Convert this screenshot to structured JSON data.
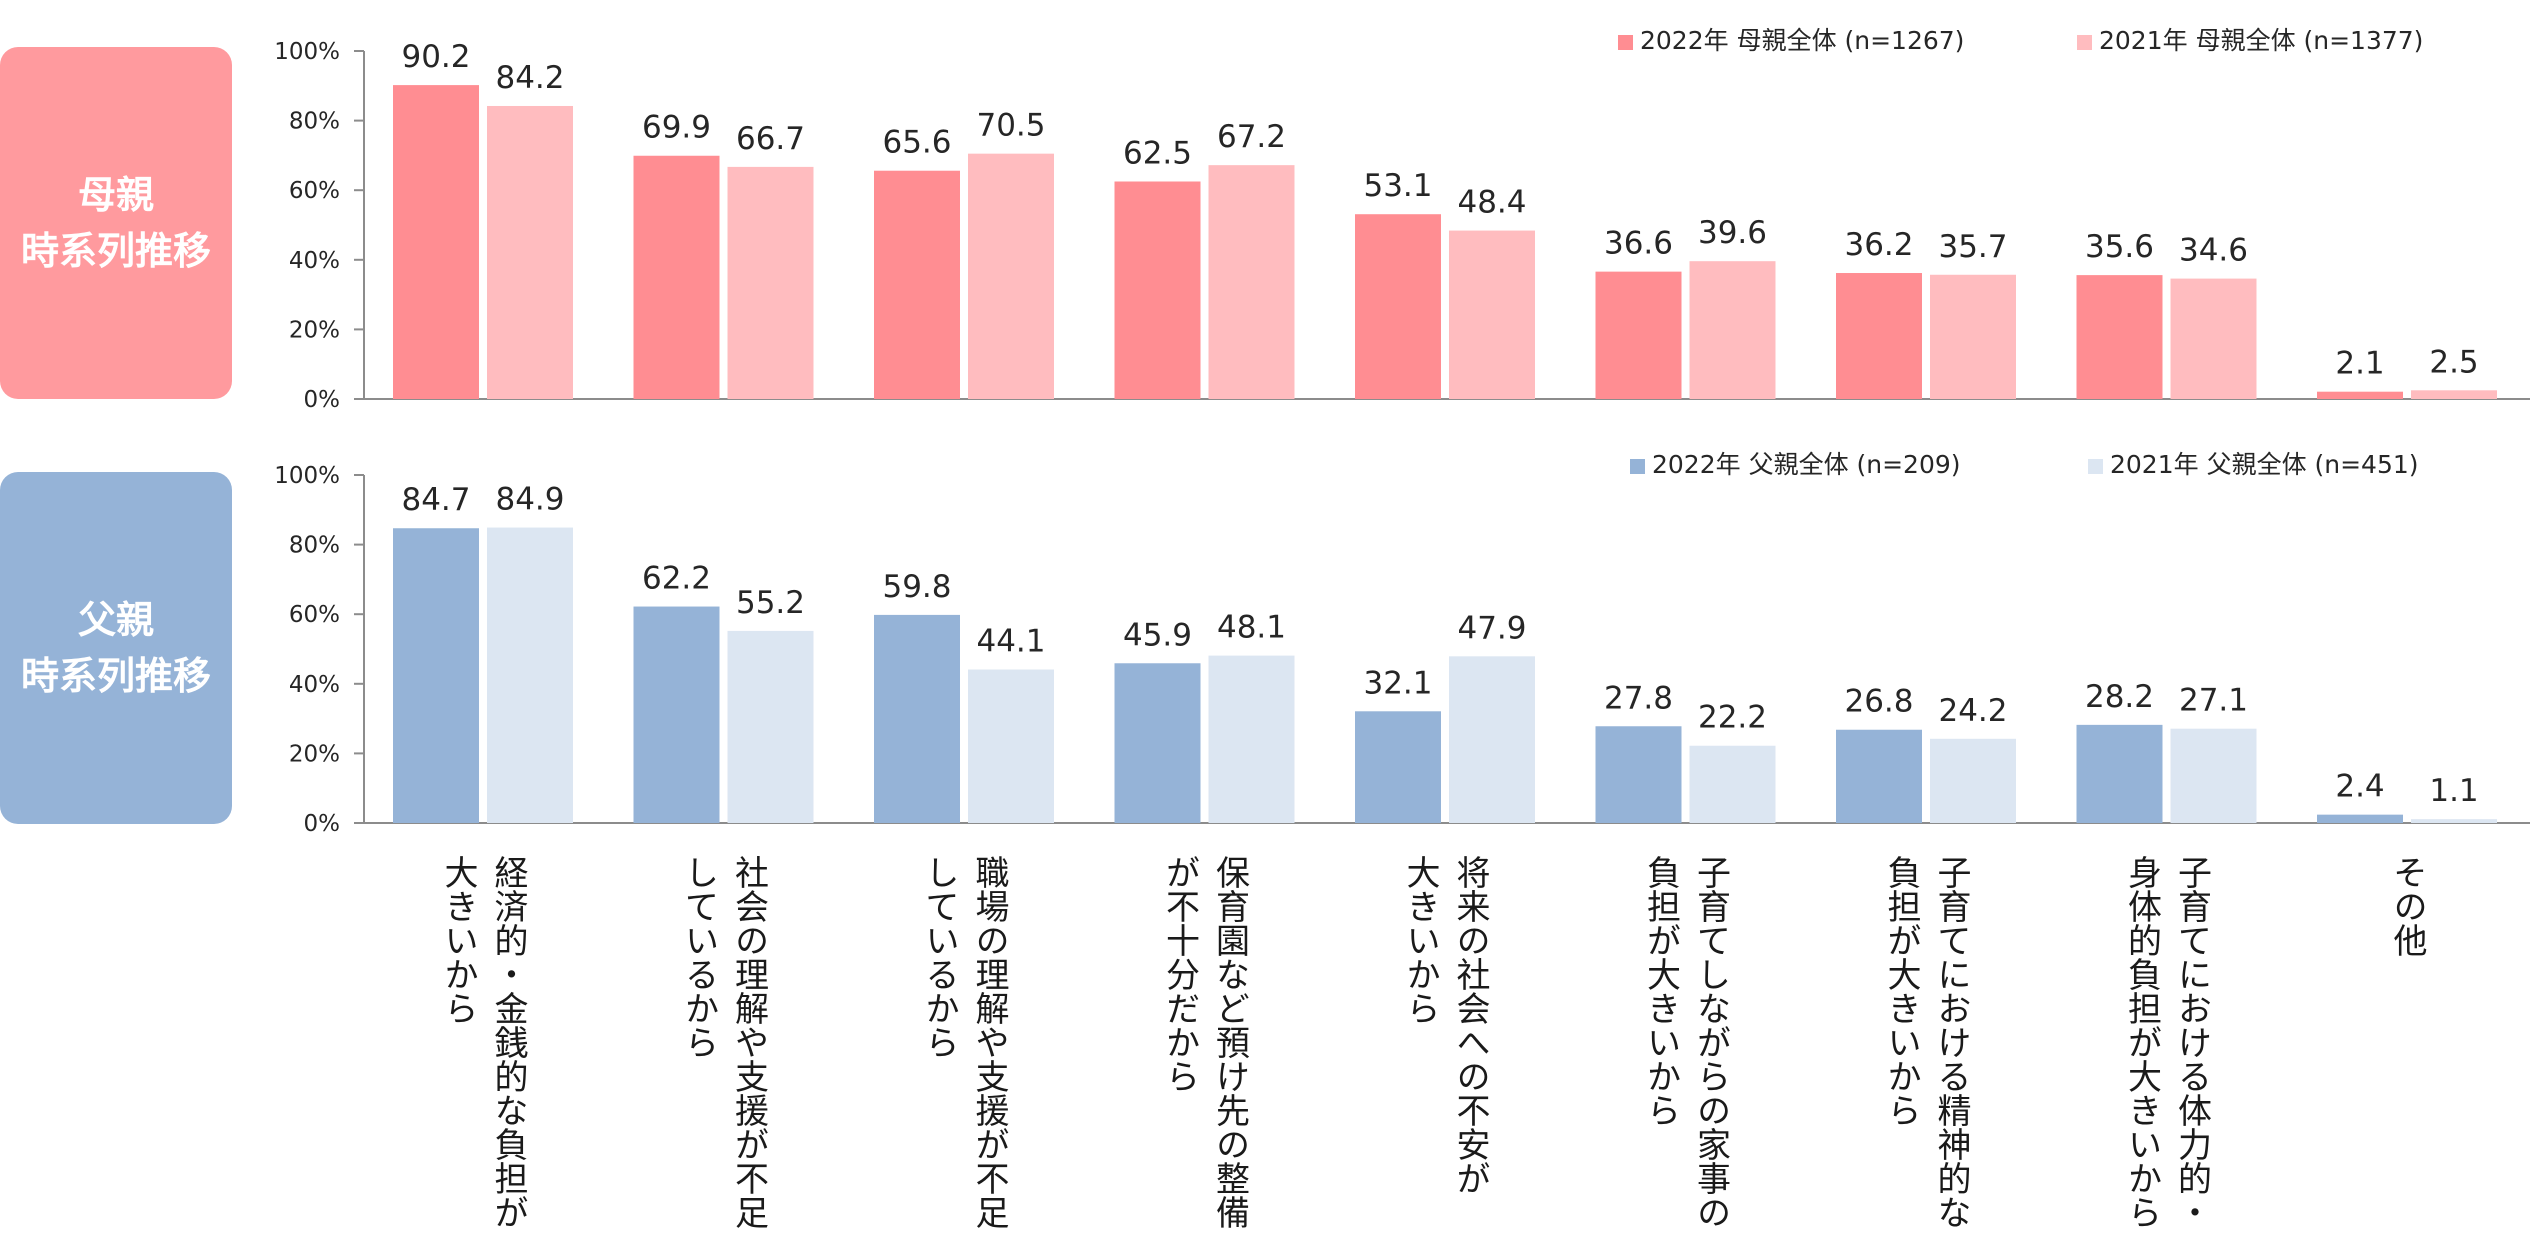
{
  "panels": [
    {
      "key": "mother",
      "side_label": "母親\n時系列推移"
    },
    {
      "key": "father",
      "side_label": "父親\n時系列推移"
    }
  ],
  "categories": [
    "経済的・金銭的な負担が大きいから",
    "社会の理解や支援が不足しているから",
    "職場の理解や支援が不足しているから",
    "保育園など預け先の整備が不十分だから",
    "将来の社会への不安が大きいから",
    "子育てしながらの家事の負担が大きいから",
    "子育てにおける精神的な負担が大きいから",
    "子育てにおける体力的・身体的負担が大きいから",
    "その他"
  ],
  "category_label_columns": [
    [
      "経済的・金銭的な負担が",
      "大きいから"
    ],
    [
      "社会の理解や支援が不足",
      "しているから"
    ],
    [
      "職場の理解や支援が不足",
      "しているから"
    ],
    [
      "保育園など預け先の整備",
      "が不十分だから"
    ],
    [
      "将来の社会への不安が",
      "大きいから"
    ],
    [
      "子育てしながらの家事の",
      "負担が大きいから"
    ],
    [
      "子育てにおける精神的な",
      "負担が大きいから"
    ],
    [
      "子育てにおける体力的・",
      "身体的負担が大きいから"
    ],
    [
      "その他"
    ]
  ],
  "chart_data": [
    {
      "type": "bar",
      "panel": "mother",
      "categories_ref": "categories",
      "series": [
        {
          "name": "2022年 母親全体 (n=1267)",
          "color": "#ff8d92",
          "values": [
            90.2,
            69.9,
            65.6,
            62.5,
            53.1,
            36.6,
            36.2,
            35.6,
            2.1
          ]
        },
        {
          "name": "2021年 母親全体 (n=1377)",
          "color": "#ffbcbf",
          "values": [
            84.2,
            66.7,
            70.5,
            67.2,
            48.4,
            39.6,
            35.7,
            34.6,
            2.5
          ]
        }
      ],
      "ylim": [
        0,
        100
      ],
      "yticks": [
        "0%",
        "20%",
        "40%",
        "60%",
        "80%",
        "100%"
      ],
      "legend_position": "top-right",
      "grid": false
    },
    {
      "type": "bar",
      "panel": "father",
      "categories_ref": "categories",
      "series": [
        {
          "name": "2022年 父親全体 (n=209)",
          "color": "#95b3d7",
          "values": [
            84.7,
            62.2,
            59.8,
            45.9,
            32.1,
            27.8,
            26.8,
            28.2,
            2.4
          ]
        },
        {
          "name": "2021年 父親全体 (n=451)",
          "color": "#dce6f2",
          "values": [
            84.9,
            55.2,
            44.1,
            48.1,
            47.9,
            22.2,
            24.2,
            27.1,
            1.1
          ]
        }
      ],
      "ylim": [
        0,
        100
      ],
      "yticks": [
        "0%",
        "20%",
        "40%",
        "60%",
        "80%",
        "100%"
      ],
      "legend_position": "top-right",
      "grid": false
    }
  ]
}
